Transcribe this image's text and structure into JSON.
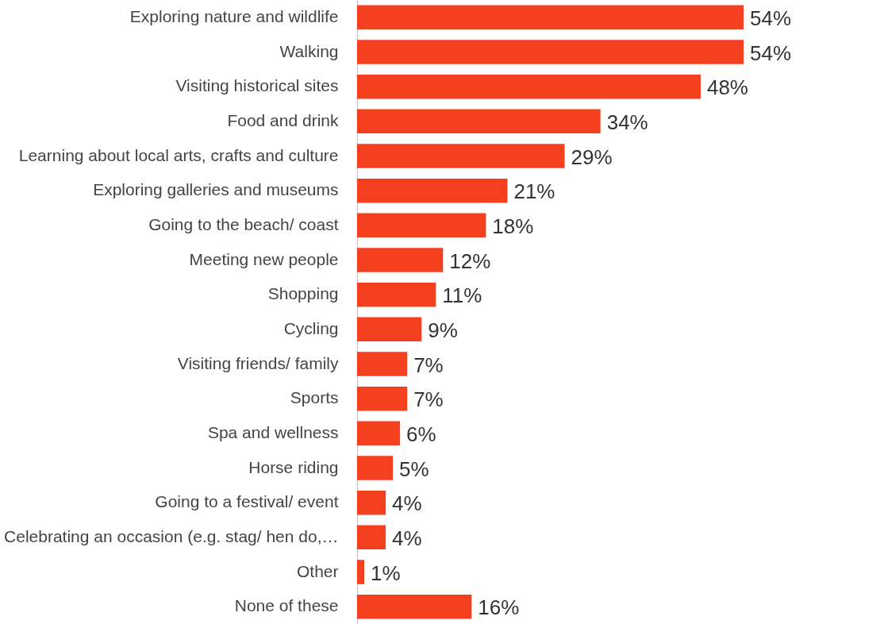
{
  "chart_data": {
    "type": "bar",
    "orientation": "horizontal",
    "categories": [
      "Exploring nature and wildlife",
      "Walking",
      "Visiting historical sites",
      "Food and drink",
      "Learning about local arts, crafts and culture",
      "Exploring galleries and museums",
      "Going to the beach/ coast",
      "Meeting new people",
      "Shopping",
      "Cycling",
      "Visiting friends/ family",
      "Sports",
      "Spa and wellness",
      "Horse riding",
      "Going to a festival/ event",
      "Celebrating an occasion (e.g. stag/ hen do,…",
      "Other",
      "None of these"
    ],
    "values": [
      54,
      54,
      48,
      34,
      29,
      21,
      18,
      12,
      11,
      9,
      7,
      7,
      6,
      5,
      4,
      4,
      1,
      16
    ],
    "value_labels": [
      "54%",
      "54%",
      "48%",
      "34%",
      "29%",
      "21%",
      "18%",
      "12%",
      "11%",
      "9%",
      "7%",
      "7%",
      "6%",
      "5%",
      "4%",
      "4%",
      "1%",
      "16%"
    ],
    "color": "#f4401f"
  }
}
